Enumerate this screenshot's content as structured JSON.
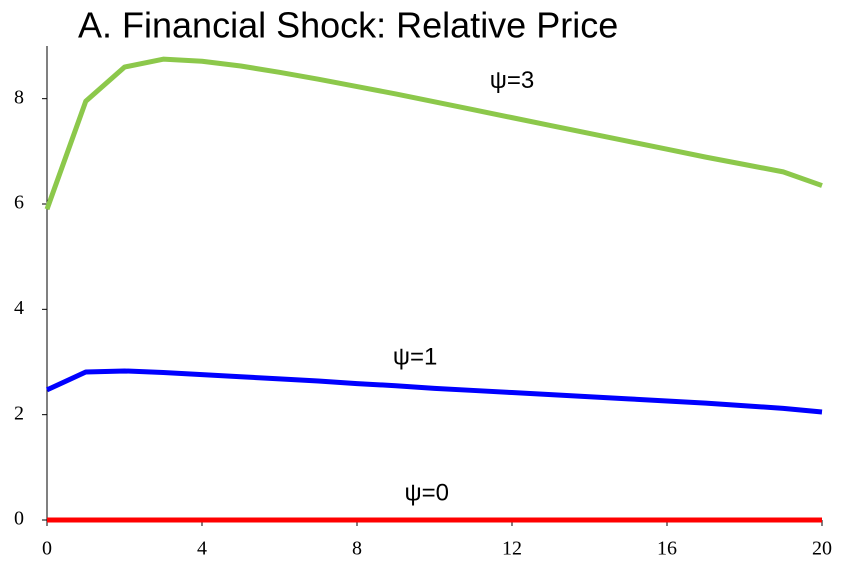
{
  "chart_data": {
    "type": "line",
    "title": "A. Financial Shock: Relative Price",
    "x": [
      0,
      1,
      2,
      3,
      4,
      5,
      6,
      7,
      8,
      9,
      10,
      11,
      12,
      13,
      14,
      15,
      16,
      17,
      18,
      19,
      20
    ],
    "series": [
      {
        "name": "ψ=3",
        "color": "#8cc84b",
        "values": [
          5.9,
          7.95,
          8.6,
          8.75,
          8.71,
          8.62,
          8.5,
          8.37,
          8.23,
          8.09,
          7.94,
          7.79,
          7.64,
          7.49,
          7.34,
          7.19,
          7.04,
          6.89,
          6.75,
          6.61,
          6.35
        ]
      },
      {
        "name": "ψ=1",
        "color": "#0000ff",
        "values": [
          2.47,
          2.81,
          2.83,
          2.8,
          2.76,
          2.72,
          2.68,
          2.64,
          2.59,
          2.55,
          2.5,
          2.46,
          2.42,
          2.38,
          2.34,
          2.3,
          2.26,
          2.22,
          2.17,
          2.12,
          2.05
        ]
      },
      {
        "name": "ψ=0",
        "color": "#ff0000",
        "values": [
          0,
          0,
          0,
          0,
          0,
          0,
          0,
          0,
          0,
          0,
          0,
          0,
          0,
          0,
          0,
          0,
          0,
          0,
          0,
          0,
          0
        ]
      }
    ],
    "xlim": [
      0,
      20
    ],
    "xticks": [
      0,
      4,
      8,
      12,
      16,
      20
    ],
    "ylim": [
      0,
      9
    ],
    "yticks": [
      0,
      2,
      4,
      6,
      8
    ]
  }
}
